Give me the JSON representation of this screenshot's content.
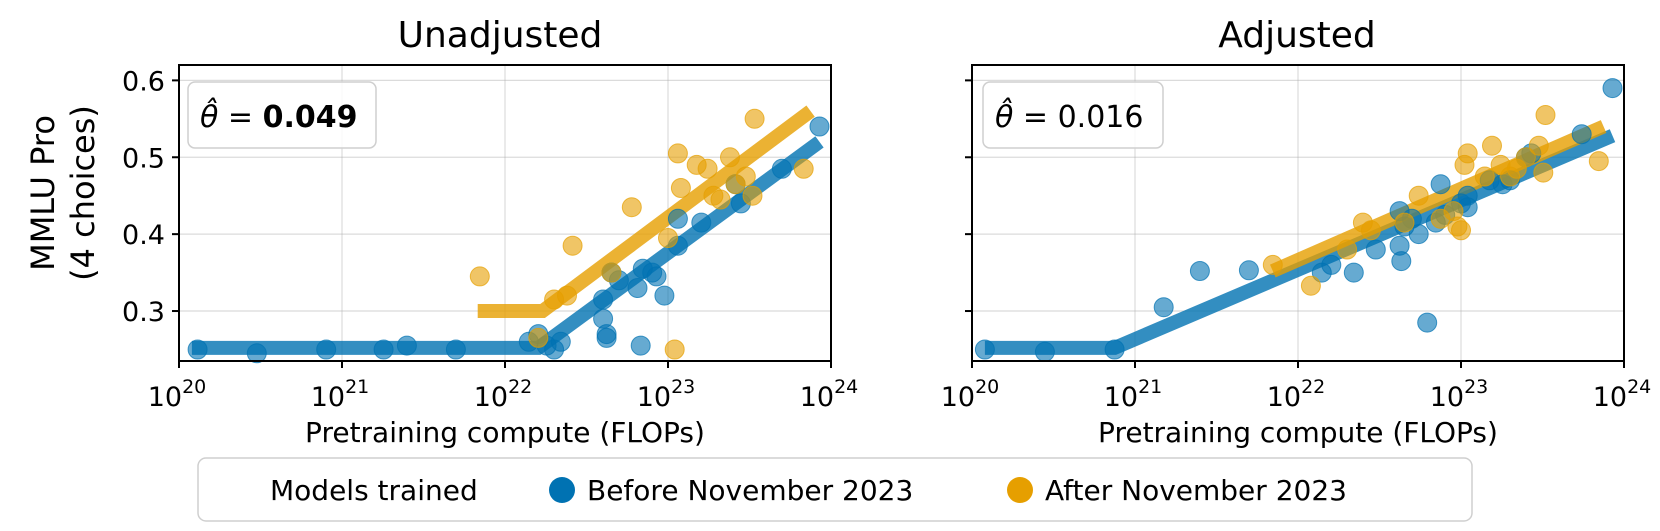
{
  "ylabel_line1": "MMLU Pro",
  "ylabel_line2": "(4 choices)",
  "legend": {
    "title": "Models trained",
    "before": "Before November 2023",
    "after": "After November 2023"
  },
  "colors": {
    "before": "#0072B2",
    "after": "#E69F00"
  },
  "chart_data": [
    {
      "type": "scatter",
      "title": "Unadjusted",
      "xlabel": "Pretraining compute (FLOPs)",
      "ylabel": "MMLU Pro\n(4 choices)",
      "xscale": "log",
      "xlim": [
        1e+20,
        1e+24
      ],
      "ylim": [
        0.235,
        0.62
      ],
      "xticks": [
        1e+20,
        1e+21,
        1e+22,
        1e+23,
        1e+24
      ],
      "yticks": [
        0.3,
        0.4,
        0.5,
        0.6
      ],
      "ytick_labels": [
        "0.3",
        "0.4",
        "0.5",
        "0.6"
      ],
      "grid": true,
      "annotation": {
        "prefix": "θ̂ = ",
        "value": "0.049",
        "bold": true
      },
      "series": [
        {
          "name": "Before November 2023",
          "points": [
            [
              1.3e+20,
              0.25
            ],
            [
              3e+20,
              0.245
            ],
            [
              8e+20,
              0.25
            ],
            [
              1.8e+21,
              0.25
            ],
            [
              2.5e+21,
              0.255
            ],
            [
              5e+21,
              0.25
            ],
            [
              1.4e+22,
              0.26
            ],
            [
              1.6e+22,
              0.27
            ],
            [
              1.8e+22,
              0.255
            ],
            [
              2e+22,
              0.25
            ],
            [
              2.2e+22,
              0.26
            ],
            [
              4e+22,
              0.29
            ],
            [
              4e+22,
              0.315
            ],
            [
              4.2e+22,
              0.27
            ],
            [
              4.2e+22,
              0.265
            ],
            [
              4.5e+22,
              0.35
            ],
            [
              5e+22,
              0.34
            ],
            [
              6.5e+22,
              0.33
            ],
            [
              6.8e+22,
              0.255
            ],
            [
              7e+22,
              0.355
            ],
            [
              8e+22,
              0.35
            ],
            [
              8.5e+22,
              0.345
            ],
            [
              9.5e+22,
              0.32
            ],
            [
              1.15e+23,
              0.385
            ],
            [
              1.15e+23,
              0.42
            ],
            [
              1.6e+23,
              0.415
            ],
            [
              2.6e+23,
              0.465
            ],
            [
              2.8e+23,
              0.44
            ],
            [
              5e+23,
              0.485
            ],
            [
              8.5e+23,
              0.54
            ]
          ]
        },
        {
          "name": "After November 2023",
          "points": [
            [
              7e+21,
              0.345
            ],
            [
              1.6e+22,
              0.265
            ],
            [
              2e+22,
              0.315
            ],
            [
              2.4e+22,
              0.32
            ],
            [
              2.6e+22,
              0.385
            ],
            [
              4.5e+22,
              0.35
            ],
            [
              6e+22,
              0.435
            ],
            [
              1e+23,
              0.395
            ],
            [
              1.1e+23,
              0.25
            ],
            [
              1.15e+23,
              0.505
            ],
            [
              1.2e+23,
              0.46
            ],
            [
              1.5e+23,
              0.49
            ],
            [
              1.75e+23,
              0.485
            ],
            [
              1.9e+23,
              0.45
            ],
            [
              2.1e+23,
              0.445
            ],
            [
              2.4e+23,
              0.5
            ],
            [
              2.6e+23,
              0.465
            ],
            [
              3e+23,
              0.475
            ],
            [
              3.3e+23,
              0.45
            ],
            [
              3.4e+23,
              0.55
            ],
            [
              6.8e+23,
              0.485
            ]
          ]
        }
      ],
      "fit_lines": [
        {
          "name": "Before November 2023",
          "points": [
            [
              1.2e+20,
              0.252
            ],
            [
              1.6e+22,
              0.252
            ],
            [
              8.5e+23,
              0.52
            ]
          ]
        },
        {
          "name": "After November 2023",
          "points": [
            [
              6.8e+21,
              0.3
            ],
            [
              1.7e+22,
              0.3
            ],
            [
              7.5e+23,
              0.56
            ]
          ]
        }
      ]
    },
    {
      "type": "scatter",
      "title": "Adjusted",
      "xlabel": "Pretraining compute (FLOPs)",
      "ylabel": "",
      "xscale": "log",
      "xlim": [
        1e+20,
        1e+24
      ],
      "ylim": [
        0.235,
        0.62
      ],
      "xticks": [
        1e+20,
        1e+21,
        1e+22,
        1e+23,
        1e+24
      ],
      "yticks": [
        0.3,
        0.4,
        0.5,
        0.6
      ],
      "ytick_labels": [],
      "grid": true,
      "annotation": {
        "prefix": "θ̂ = ",
        "value": "0.016",
        "bold": false
      },
      "series": [
        {
          "name": "Before November 2023",
          "points": [
            [
              1.2e+20,
              0.25
            ],
            [
              2.8e+20,
              0.247
            ],
            [
              7.5e+20,
              0.25
            ],
            [
              1.5e+21,
              0.305
            ],
            [
              2.5e+21,
              0.352
            ],
            [
              5e+21,
              0.353
            ],
            [
              1.4e+22,
              0.35
            ],
            [
              1.6e+22,
              0.36
            ],
            [
              2.2e+22,
              0.35
            ],
            [
              3e+22,
              0.38
            ],
            [
              4.2e+22,
              0.43
            ],
            [
              4.2e+22,
              0.385
            ],
            [
              4.3e+22,
              0.365
            ],
            [
              4.5e+22,
              0.41
            ],
            [
              5e+22,
              0.42
            ],
            [
              5.5e+22,
              0.4
            ],
            [
              6.2e+22,
              0.285
            ],
            [
              7e+22,
              0.415
            ],
            [
              7.5e+22,
              0.465
            ],
            [
              8e+22,
              0.425
            ],
            [
              1e+23,
              0.44
            ],
            [
              1.1e+23,
              0.45
            ],
            [
              1.1e+23,
              0.435
            ],
            [
              1.5e+23,
              0.47
            ],
            [
              1.8e+23,
              0.465
            ],
            [
              2e+23,
              0.47
            ],
            [
              2.5e+23,
              0.5
            ],
            [
              2.7e+23,
              0.505
            ],
            [
              5.5e+23,
              0.53
            ],
            [
              8.5e+23,
              0.59
            ]
          ]
        },
        {
          "name": "After November 2023",
          "points": [
            [
              7e+21,
              0.36
            ],
            [
              1.2e+22,
              0.333
            ],
            [
              2e+22,
              0.38
            ],
            [
              2.5e+22,
              0.415
            ],
            [
              2.8e+22,
              0.405
            ],
            [
              4.5e+22,
              0.415
            ],
            [
              5.5e+22,
              0.45
            ],
            [
              7.5e+22,
              0.42
            ],
            [
              9e+22,
              0.43
            ],
            [
              9.5e+22,
              0.41
            ],
            [
              1e+23,
              0.405
            ],
            [
              1.05e+23,
              0.49
            ],
            [
              1.1e+23,
              0.505
            ],
            [
              1.4e+23,
              0.475
            ],
            [
              1.55e+23,
              0.515
            ],
            [
              1.75e+23,
              0.49
            ],
            [
              2e+23,
              0.475
            ],
            [
              2.2e+23,
              0.485
            ],
            [
              2.5e+23,
              0.5
            ],
            [
              3e+23,
              0.515
            ],
            [
              3.2e+23,
              0.48
            ],
            [
              3.3e+23,
              0.555
            ],
            [
              7e+23,
              0.495
            ]
          ]
        }
      ],
      "fit_lines": [
        {
          "name": "Before November 2023",
          "points": [
            [
              1.2e+20,
              0.252
            ],
            [
              7.5e+20,
              0.252
            ],
            [
              8.5e+23,
              0.528
            ]
          ]
        },
        {
          "name": "After November 2023",
          "points": [
            [
              7e+21,
              0.352
            ],
            [
              7.5e+23,
              0.54
            ]
          ]
        }
      ]
    }
  ]
}
